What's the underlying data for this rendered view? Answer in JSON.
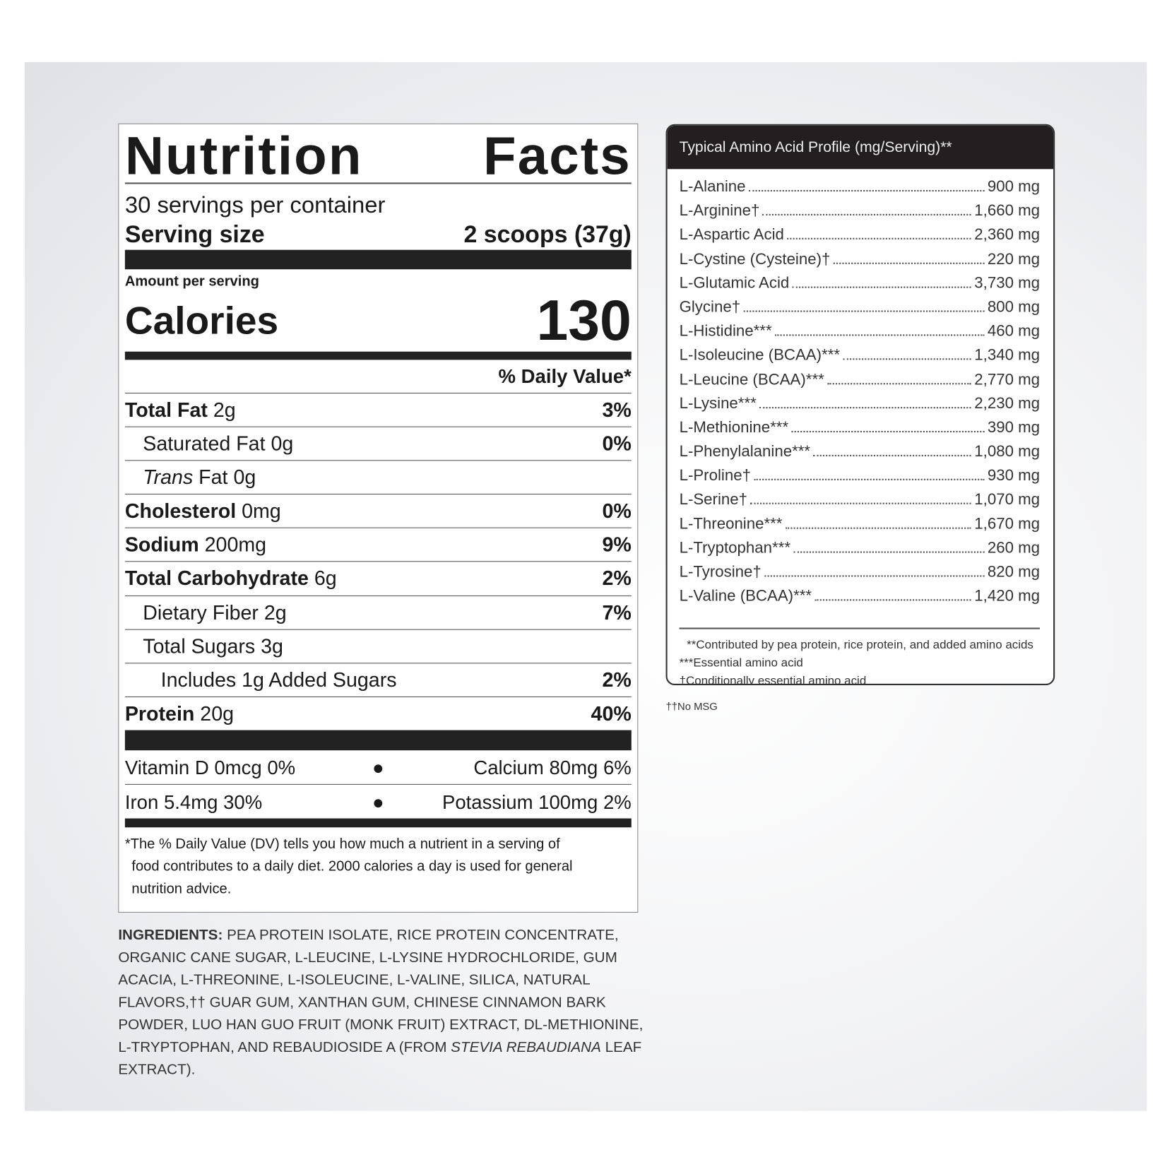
{
  "nutrition": {
    "title_left": "Nutrition",
    "title_right": "Facts",
    "servings": "30 servings per container",
    "serving_size_label": "Serving size",
    "serving_size_value": "2 scoops (37g)",
    "amount_per_serving": "Amount per serving",
    "calories_label": "Calories",
    "calories_value": "130",
    "daily_value_header": "% Daily Value*",
    "rows": [
      {
        "bold": "Total Fat",
        "text": " 2g",
        "dv": "3%",
        "indent": 0
      },
      {
        "bold": "",
        "text": "Saturated Fat 0g",
        "dv": "0%",
        "indent": 1
      },
      {
        "italic": "Trans",
        "text": " Fat 0g",
        "dv": "",
        "indent": 1
      },
      {
        "bold": "Cholesterol",
        "text": " 0mg",
        "dv": "0%",
        "indent": 0
      },
      {
        "bold": "Sodium",
        "text": " 200mg",
        "dv": "9%",
        "indent": 0
      },
      {
        "bold": "Total Carbohydrate",
        "text": " 6g",
        "dv": "2%",
        "indent": 0
      },
      {
        "bold": "",
        "text": "Dietary Fiber 2g",
        "dv": "7%",
        "indent": 1
      },
      {
        "bold": "",
        "text": "Total Sugars 3g",
        "dv": "",
        "indent": 1
      },
      {
        "bold": "",
        "text": "Includes 1g Added Sugars",
        "dv": "2%",
        "indent": 2
      },
      {
        "bold": "Protein",
        "text": " 20g",
        "dv": "40%",
        "indent": 0
      }
    ],
    "vitamins": [
      {
        "left": "Vitamin D 0mcg 0%",
        "right": "Calcium 80mg 6%"
      },
      {
        "left": "Iron 5.4mg 30%",
        "right": "Potassium 100mg 2%"
      }
    ],
    "footnote": [
      "*The % Daily Value (DV) tells you how much a nutrient in a serving of",
      "food contributes to a daily diet. 2000 calories a day is used for general",
      "nutrition advice."
    ]
  },
  "ingredients": {
    "label": "INGREDIENTS:",
    "text_before": " PEA PROTEIN ISOLATE, RICE PROTEIN CONCENTRATE, ORGANIC CANE SUGAR, L-LEUCINE, L-LYSINE HYDROCHLORIDE, GUM ACACIA, L-THREONINE, L-ISOLEUCINE, L-VALINE, SILICA, NATURAL FLAVORS,†† GUAR GUM, XANTHAN GUM, CHINESE CINNAMON BARK POWDER, LUO HAN GUO FRUIT (MONK FRUIT) EXTRACT, DL-METHIONINE, L-TRYPTOPHAN, AND REBAUDIOSIDE A (FROM ",
    "italic": "STEVIA REBAUDIANA",
    "text_after": " LEAF EXTRACT)."
  },
  "amino": {
    "title": "Typical Amino Acid Profile (mg/Serving)**",
    "rows": [
      {
        "name": "L-Alanine",
        "value": "900 mg"
      },
      {
        "name": "L-Arginine†",
        "value": "1,660 mg"
      },
      {
        "name": "L-Aspartic Acid",
        "value": "2,360 mg"
      },
      {
        "name": "L-Cystine (Cysteine)†",
        "value": "220 mg"
      },
      {
        "name": "L-Glutamic Acid",
        "value": "3,730 mg"
      },
      {
        "name": "Glycine†",
        "value": "800 mg"
      },
      {
        "name": "L-Histidine***",
        "value": "460 mg"
      },
      {
        "name": "L-Isoleucine (BCAA)***",
        "value": "1,340 mg"
      },
      {
        "name": "L-Leucine (BCAA)***",
        "value": "2,770 mg"
      },
      {
        "name": "L-Lysine***",
        "value": "2,230 mg"
      },
      {
        "name": "L-Methionine***",
        "value": "390 mg"
      },
      {
        "name": "L-Phenylalanine***",
        "value": "1,080 mg"
      },
      {
        "name": "L-Proline†",
        "value": "930 mg"
      },
      {
        "name": "L-Serine†",
        "value": "1,070 mg"
      },
      {
        "name": "L-Threonine***",
        "value": "1,670 mg"
      },
      {
        "name": "L-Tryptophan***",
        "value": "260 mg"
      },
      {
        "name": "L-Tyrosine†",
        "value": "820 mg"
      },
      {
        "name": "L-Valine (BCAA)***",
        "value": "1,420 mg"
      }
    ],
    "notes": [
      "**Contributed by pea protein, rice protein, and added amino acids",
      "***Essential amino acid",
      "†Conditionally essential amino acid"
    ]
  },
  "no_msg": "††No MSG"
}
